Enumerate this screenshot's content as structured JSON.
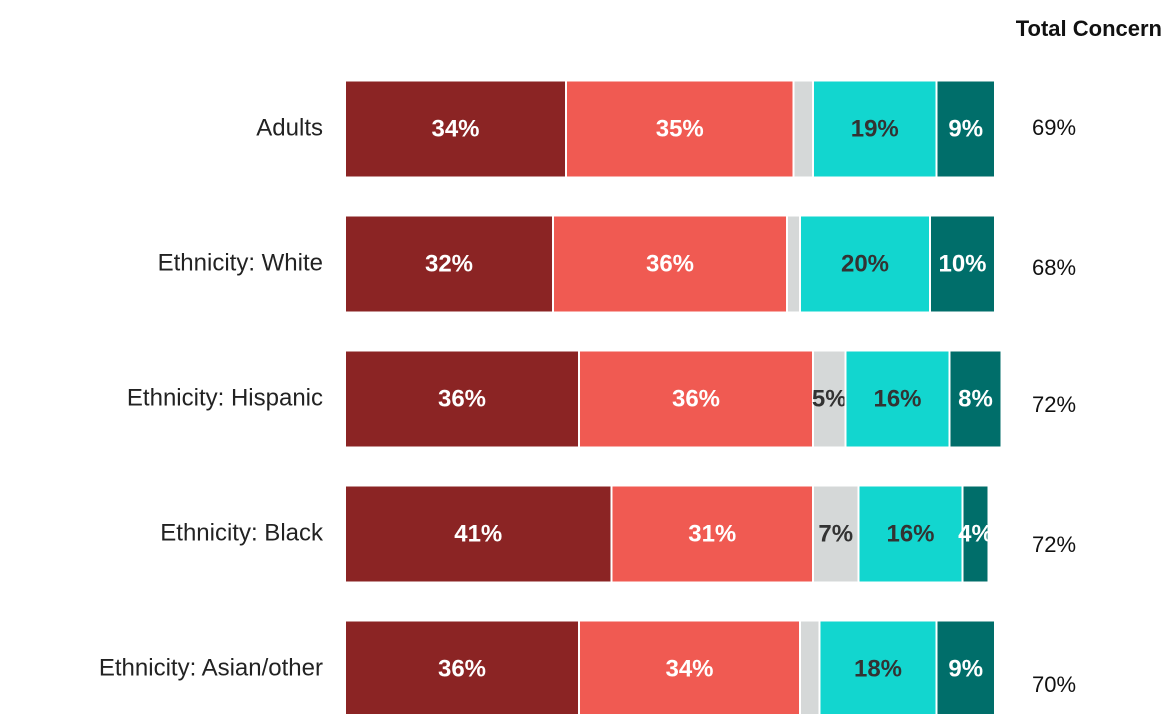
{
  "chart_data": {
    "type": "stacked-bar-horizontal",
    "categories": [
      "Adults",
      "Ethnicity: White",
      "Ethnicity: Hispanic",
      "Ethnicity: Black",
      "Ethnicity: Asian/other"
    ],
    "xlim": [
      0,
      100
    ],
    "series": [
      {
        "color": "#8b2424",
        "values": [
          34,
          32,
          36,
          41,
          36
        ],
        "value_labels": [
          "34%",
          "32%",
          "36%",
          "41%",
          "36%"
        ]
      },
      {
        "color": "#f05a52",
        "values": [
          35,
          36,
          36,
          31,
          34
        ],
        "value_labels": [
          "35%",
          "36%",
          "36%",
          "31%",
          "34%"
        ]
      },
      {
        "color": "#d5d8d8",
        "values": [
          3,
          2,
          5,
          7,
          3
        ],
        "value_labels": [
          null,
          null,
          "5%",
          "7%",
          null
        ]
      },
      {
        "color": "#12d6cf",
        "values": [
          19,
          20,
          16,
          16,
          18
        ],
        "value_labels": [
          "19%",
          "20%",
          "16%",
          "16%",
          "18%"
        ]
      },
      {
        "color": "#006e6a",
        "values": [
          9,
          10,
          8,
          4,
          9
        ],
        "value_labels": [
          "9%",
          "10%",
          "8%",
          "4%",
          "9%"
        ]
      }
    ],
    "total_concern": {
      "title": "Total Concern",
      "values": [
        69,
        68,
        72,
        72,
        70
      ],
      "value_labels": [
        "69%",
        "68%",
        "72%",
        "72%",
        "70%"
      ]
    }
  }
}
